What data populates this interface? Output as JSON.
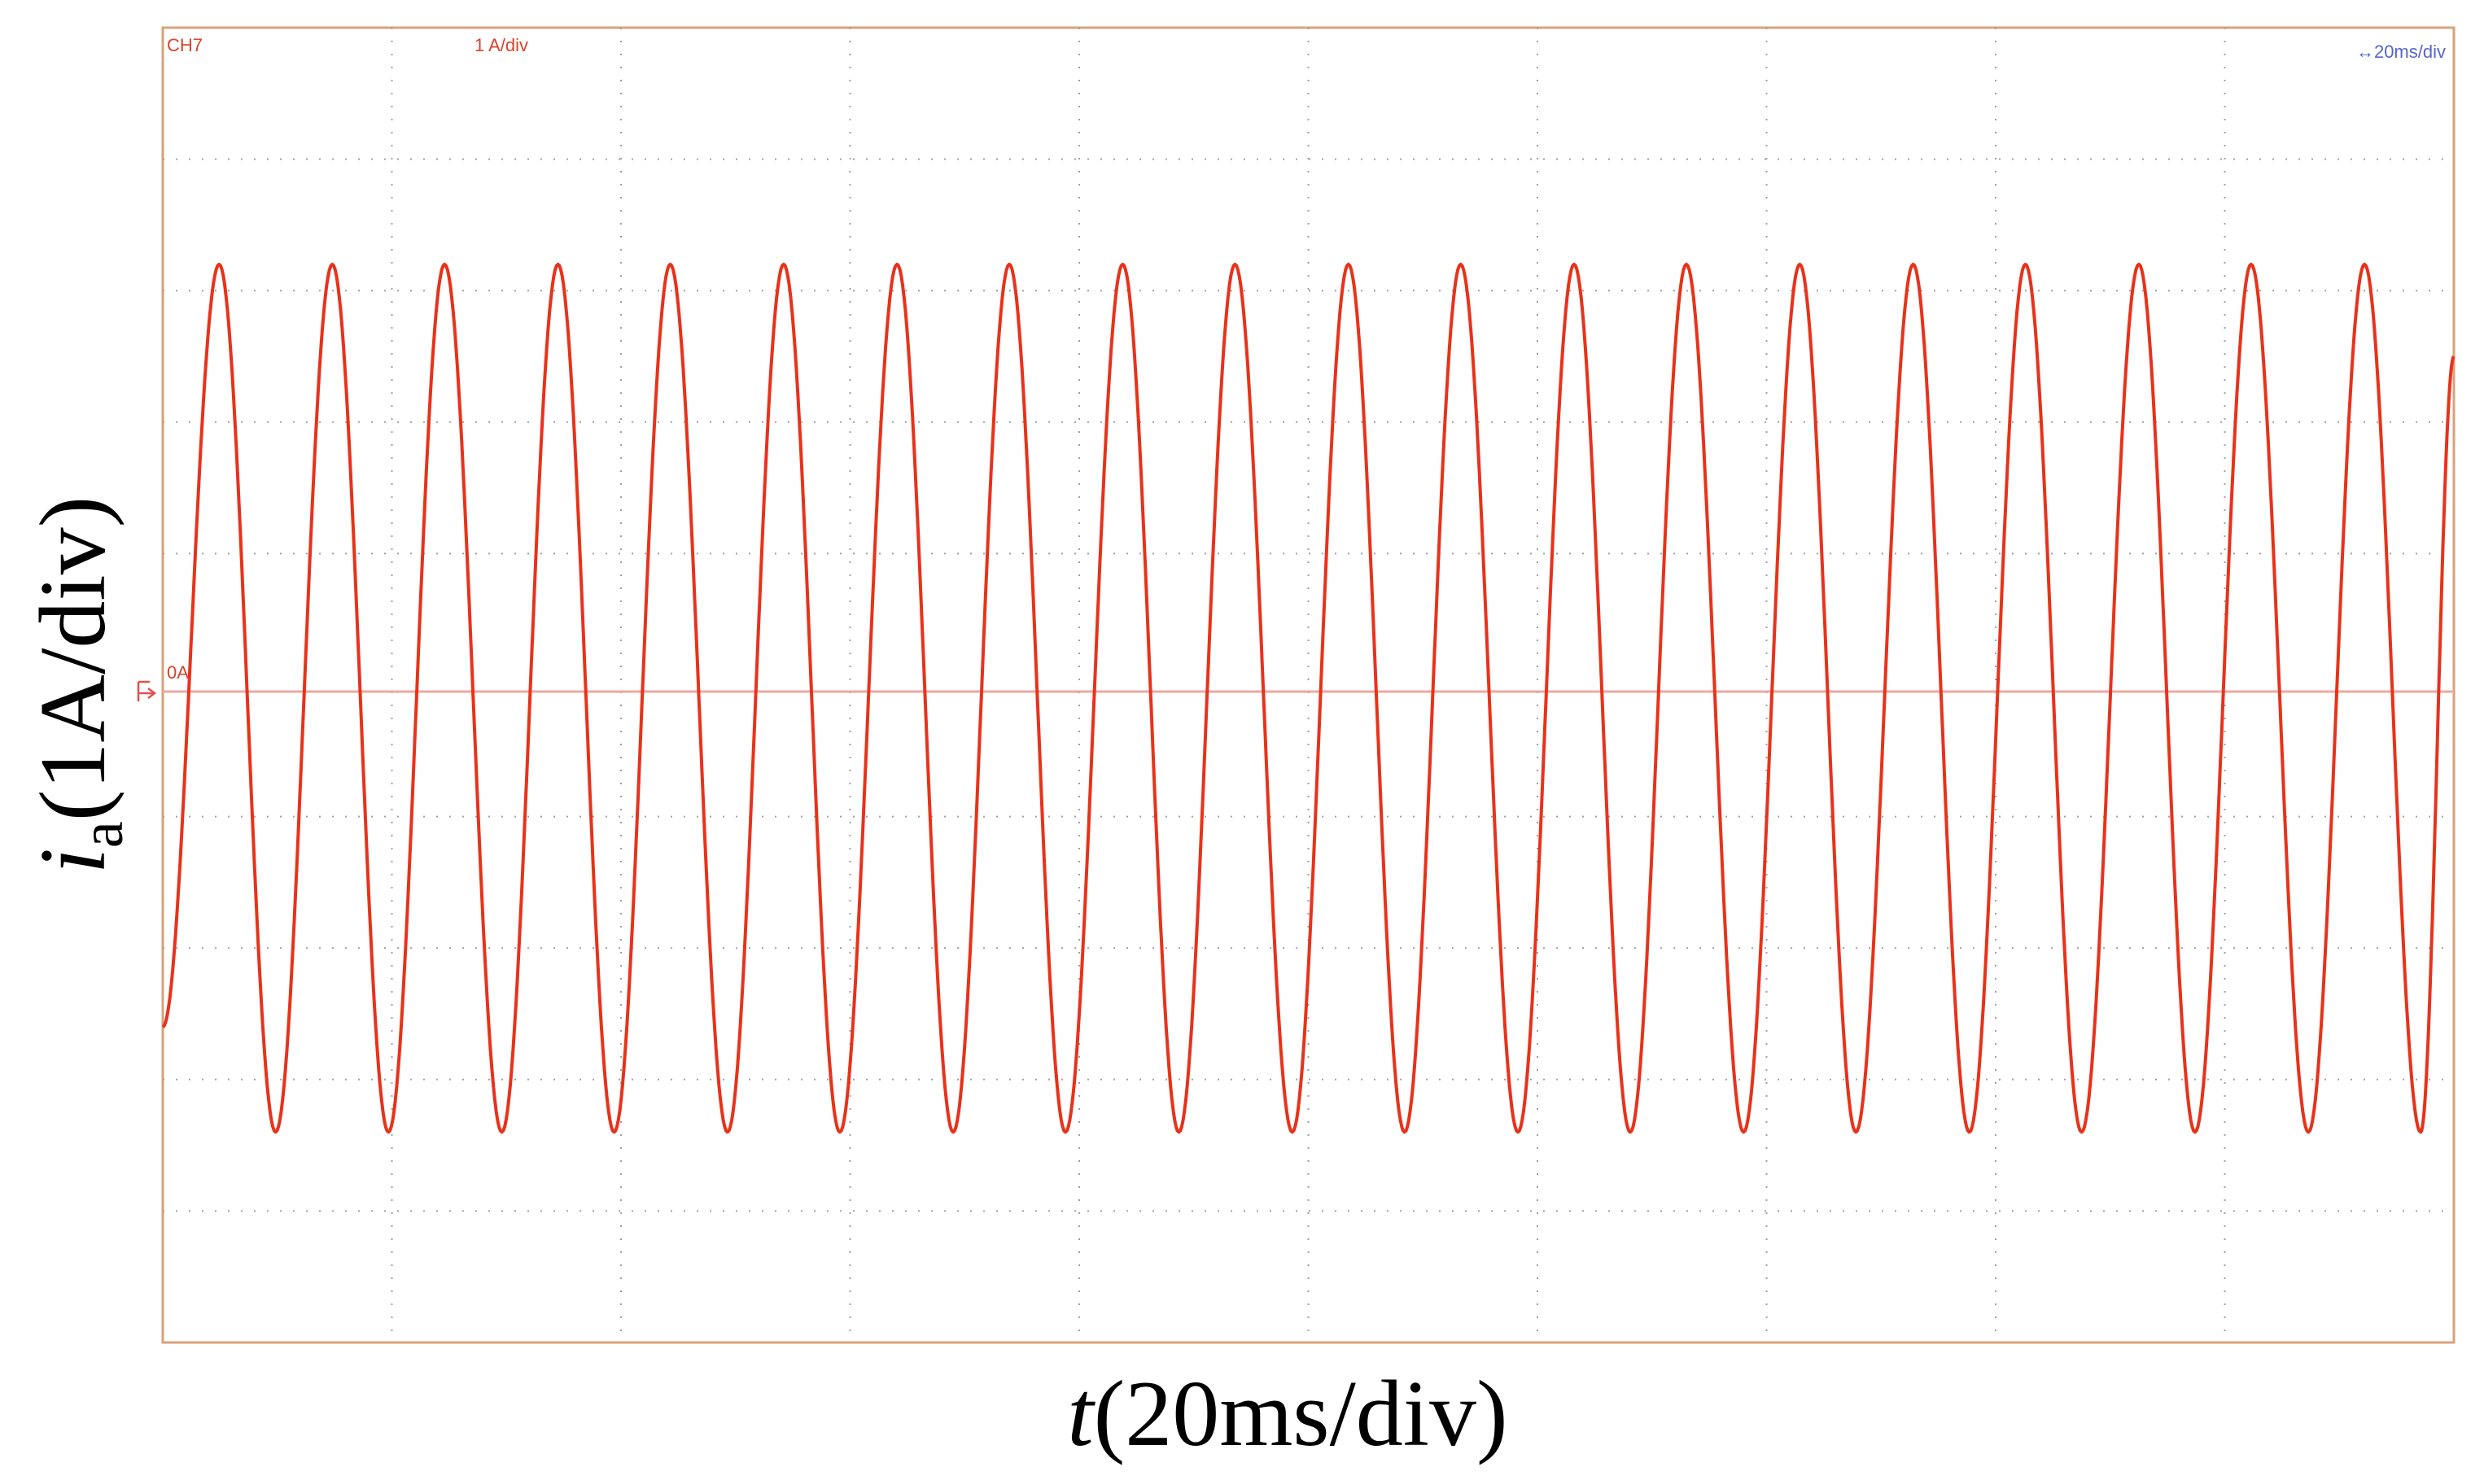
{
  "channel": {
    "name": "CH7",
    "scale_label": "1 A/div",
    "ground_label": "0A",
    "ground_marker": "ground-reference-icon"
  },
  "timebase": {
    "label": "20ms/div",
    "arrow_glyph": "↔",
    "icon": "double-arrow-icon"
  },
  "axes": {
    "ylabel_i": "i",
    "ylabel_sub": "a",
    "ylabel_rest": "(1A/div)",
    "xlabel_t": "t",
    "xlabel_rest": "(20ms/div)"
  },
  "colors": {
    "trace": "#e8321a",
    "frame": "#d9a27a",
    "channel_text": "#d9442b",
    "timebase_text": "#5566cc",
    "grid": "#a0a0a0",
    "zero_line": "#eea8a0"
  },
  "chart_data": {
    "type": "line",
    "title": "",
    "xlabel": "t(20ms/div)",
    "ylabel": "ia(1A/div)",
    "x_unit": "ms",
    "y_unit": "A",
    "xlim": [
      0,
      200
    ],
    "ylim": [
      -5,
      5
    ],
    "x_divisions": 10,
    "y_divisions": 10,
    "grid": true,
    "series": [
      {
        "amplitude": 3.2,
        "frequency_hz": 50.7,
        "x": [
          0,
          4.92,
          9.85,
          14.8,
          19.7,
          24.6,
          29.6,
          34.5,
          39.4,
          44.3,
          49.3,
          54.2,
          59.1,
          64.1,
          69.0,
          73.9,
          78.8,
          83.8,
          88.7,
          93.6,
          98.6,
          103.5,
          108.4,
          113.3,
          118.3,
          123.2,
          128.1,
          133.0,
          138.0,
          142.9,
          147.8,
          152.8,
          157.7,
          162.6,
          167.5,
          172.5,
          177.4,
          182.3,
          187.3,
          192.2,
          197.1,
          200.0
        ],
        "y": [
          -2.6,
          3.2,
          -3.4,
          3.2,
          -3.4,
          3.2,
          -3.4,
          3.2,
          -3.4,
          3.2,
          -3.4,
          3.2,
          -3.4,
          3.2,
          -3.4,
          3.2,
          -3.4,
          3.2,
          -3.4,
          3.2,
          -3.4,
          3.2,
          -3.4,
          3.2,
          -3.4,
          3.2,
          -3.4,
          3.2,
          -3.4,
          3.2,
          -3.4,
          3.2,
          -3.4,
          3.2,
          -3.4,
          3.2,
          -3.4,
          3.2,
          -3.4,
          3.2,
          -3.4,
          2.5
        ]
      }
    ]
  }
}
